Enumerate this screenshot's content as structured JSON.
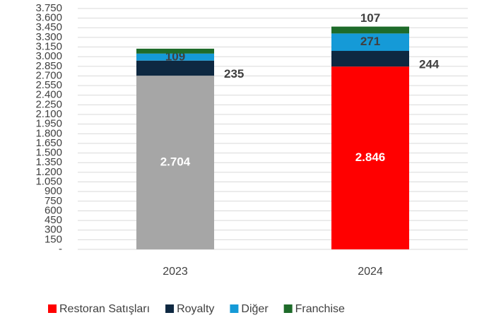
{
  "chart_data": {
    "type": "stacked-bar",
    "categories": [
      "2023",
      "2024"
    ],
    "series": [
      {
        "name": "Restoran Satışları",
        "color": "#ff0000",
        "colors": [
          "#a6a6a6",
          "#ff0000"
        ],
        "values": [
          2704,
          2846
        ],
        "value_labels": [
          "2.704",
          "2.846"
        ]
      },
      {
        "name": "Royalty",
        "color": "#0e2841",
        "values": [
          235,
          244
        ],
        "value_labels": [
          "235",
          "244"
        ]
      },
      {
        "name": "Diğer",
        "color": "#159ad7",
        "values": [
          109,
          271
        ],
        "value_labels": [
          "109",
          "271"
        ]
      },
      {
        "name": "Franchise",
        "color": "#1e6b2a",
        "values": [
          76,
          107
        ],
        "value_labels": [
          null,
          "107"
        ]
      }
    ],
    "ylim": [
      0,
      3750
    ],
    "yticks": [
      {
        "value": 0,
        "label": "-"
      },
      150,
      300,
      450,
      600,
      750,
      900,
      {
        "value": 1050,
        "label": "1.050"
      },
      {
        "value": 1200,
        "label": "1.200"
      },
      {
        "value": 1350,
        "label": "1.350"
      },
      {
        "value": 1500,
        "label": "1.500"
      },
      {
        "value": 1650,
        "label": "1.650"
      },
      {
        "value": 1800,
        "label": "1.800"
      },
      {
        "value": 1950,
        "label": "1.950"
      },
      {
        "value": 2100,
        "label": "2.100"
      },
      {
        "value": 2250,
        "label": "2.250"
      },
      {
        "value": 2400,
        "label": "2.400"
      },
      {
        "value": 2550,
        "label": "2.550"
      },
      {
        "value": 2700,
        "label": "2.700"
      },
      {
        "value": 2850,
        "label": "2.850"
      },
      {
        "value": 3000,
        "label": "3.000"
      },
      {
        "value": 3150,
        "label": "3.150"
      },
      {
        "value": 3300,
        "label": "3.300"
      },
      {
        "value": 3450,
        "label": "3.450"
      },
      {
        "value": 3600,
        "label": "3.600"
      },
      {
        "value": 3750,
        "label": "3.750"
      }
    ],
    "grid": true,
    "legend": "bottom"
  }
}
